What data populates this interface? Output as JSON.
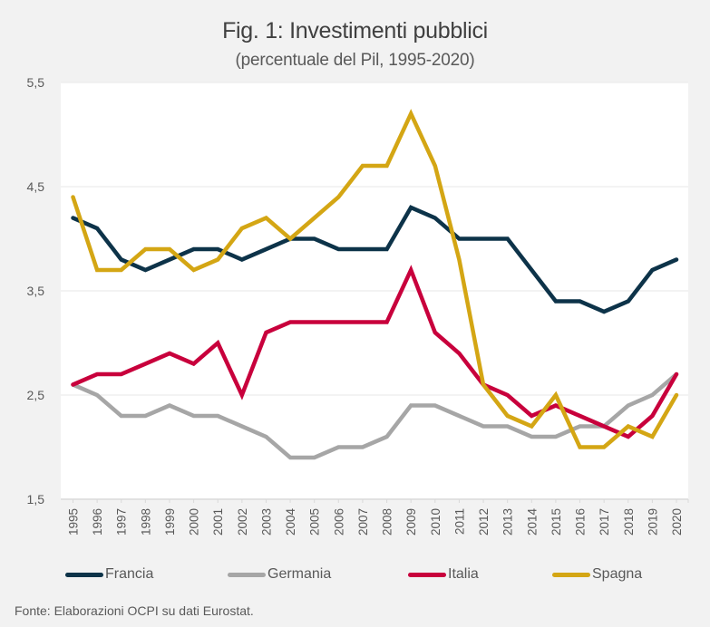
{
  "chart_data": {
    "type": "line",
    "title": "Fig. 1: Investimenti pubblici",
    "subtitle": "(percentuale del Pil, 1995-2020)",
    "xlabel": "",
    "ylabel": "",
    "x": [
      "1995",
      "1996",
      "1997",
      "1998",
      "1999",
      "2000",
      "2001",
      "2002",
      "2003",
      "2004",
      "2005",
      "2006",
      "2007",
      "2008",
      "2009",
      "2010",
      "2011",
      "2012",
      "2013",
      "2014",
      "2015",
      "2016",
      "2017",
      "2018",
      "2019",
      "2020"
    ],
    "ylim": [
      1.5,
      5.5
    ],
    "yticks": [
      1.5,
      2.5,
      3.5,
      4.5,
      5.5
    ],
    "ytick_labels": [
      "1,5",
      "2,5",
      "3,5",
      "4,5",
      "5,5"
    ],
    "grid": true,
    "legend_position": "bottom",
    "series": [
      {
        "name": "Francia",
        "color": "#0d3349",
        "values": [
          4.2,
          4.1,
          3.8,
          3.7,
          3.8,
          3.9,
          3.9,
          3.8,
          3.9,
          4.0,
          4.0,
          3.9,
          3.9,
          3.9,
          4.3,
          4.2,
          4.0,
          4.0,
          4.0,
          3.7,
          3.4,
          3.4,
          3.3,
          3.4,
          3.7,
          3.8
        ]
      },
      {
        "name": "Germania",
        "color": "#a6a6a6",
        "values": [
          2.6,
          2.5,
          2.3,
          2.3,
          2.4,
          2.3,
          2.3,
          2.2,
          2.1,
          1.9,
          1.9,
          2.0,
          2.0,
          2.1,
          2.4,
          2.4,
          2.3,
          2.2,
          2.2,
          2.1,
          2.1,
          2.2,
          2.2,
          2.4,
          2.5,
          2.7
        ]
      },
      {
        "name": "Italia",
        "color": "#c8003c",
        "values": [
          2.6,
          2.7,
          2.7,
          2.8,
          2.9,
          2.8,
          3.0,
          2.5,
          3.1,
          3.2,
          3.2,
          3.2,
          3.2,
          3.2,
          3.7,
          3.1,
          2.9,
          2.6,
          2.5,
          2.3,
          2.4,
          2.3,
          2.2,
          2.1,
          2.3,
          2.7
        ]
      },
      {
        "name": "Spagna",
        "color": "#d4a614",
        "values": [
          4.4,
          3.7,
          3.7,
          3.9,
          3.9,
          3.7,
          3.8,
          4.1,
          4.2,
          4.0,
          4.2,
          4.4,
          4.7,
          4.7,
          5.2,
          4.7,
          3.8,
          2.6,
          2.3,
          2.2,
          2.5,
          2.0,
          2.0,
          2.2,
          2.1,
          2.5
        ]
      }
    ],
    "source": "Fonte: Elaborazioni OCPI su dati Eurostat."
  }
}
